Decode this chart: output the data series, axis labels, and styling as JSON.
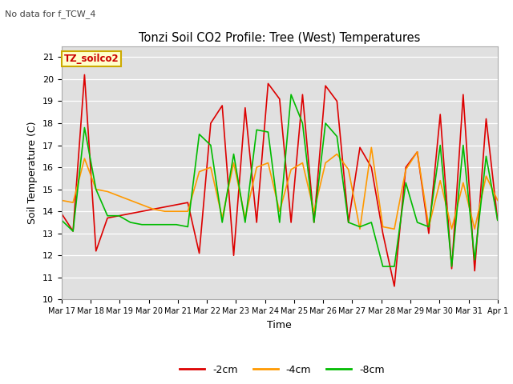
{
  "title": "Tonzi Soil CO2 Profile: Tree (West) Temperatures",
  "no_data_text": "No data for f_TCW_4",
  "ylabel": "Soil Temperature (C)",
  "xlabel": "Time",
  "box_label": "TZ_soilco2",
  "ylim": [
    10.0,
    21.5
  ],
  "yticks": [
    10.0,
    11.0,
    12.0,
    13.0,
    14.0,
    15.0,
    16.0,
    17.0,
    18.0,
    19.0,
    20.0,
    21.0
  ],
  "xtick_labels": [
    "Mar 17",
    "Mar 18",
    "Mar 19",
    "Mar 20",
    "Mar 21",
    "Mar 22",
    "Mar 23",
    "Mar 24",
    "Mar 25",
    "Mar 26",
    "Mar 27",
    "Mar 28",
    "Mar 29",
    "Mar 30",
    "Mar 31",
    "Apr 1"
  ],
  "colors": {
    "neg2cm": "#dd0000",
    "neg4cm": "#ff9900",
    "neg8cm": "#00bb00"
  },
  "background_color": "#e0e0e0",
  "legend_labels": [
    "-2cm",
    "-4cm",
    "-8cm"
  ],
  "neg2cm": [
    13.9,
    13.1,
    20.2,
    12.2,
    13.7,
    13.8,
    13.9,
    14.0,
    14.1,
    14.2,
    14.3,
    14.4,
    12.1,
    18.0,
    18.8,
    12.0,
    18.7,
    13.5,
    19.8,
    19.1,
    13.5,
    19.3,
    13.5,
    19.7,
    19.0,
    13.5,
    16.9,
    16.0,
    13.0,
    10.6,
    16.0,
    16.7,
    13.0,
    18.4,
    11.4,
    19.3,
    11.3,
    18.2,
    13.6
  ],
  "neg4cm": [
    14.5,
    14.4,
    16.4,
    15.0,
    14.9,
    14.7,
    14.5,
    14.3,
    14.1,
    14.0,
    14.0,
    14.0,
    15.8,
    16.0,
    13.7,
    16.2,
    13.7,
    16.0,
    16.2,
    14.0,
    15.9,
    16.2,
    14.0,
    16.2,
    16.6,
    15.9,
    13.2,
    16.9,
    13.3,
    13.2,
    15.9,
    16.7,
    13.3,
    15.4,
    13.2,
    15.3,
    13.2,
    15.6,
    14.5
  ],
  "neg8cm": [
    13.6,
    13.1,
    17.8,
    15.0,
    13.8,
    13.8,
    13.5,
    13.4,
    13.4,
    13.4,
    13.4,
    13.3,
    17.5,
    17.0,
    13.5,
    16.6,
    13.5,
    17.7,
    17.6,
    13.5,
    19.3,
    18.0,
    13.5,
    18.0,
    17.4,
    13.5,
    13.3,
    13.5,
    11.5,
    11.5,
    15.3,
    13.5,
    13.3,
    17.0,
    11.5,
    17.0,
    11.8,
    16.5,
    13.6
  ],
  "figsize": [
    6.4,
    4.8
  ],
  "dpi": 100
}
